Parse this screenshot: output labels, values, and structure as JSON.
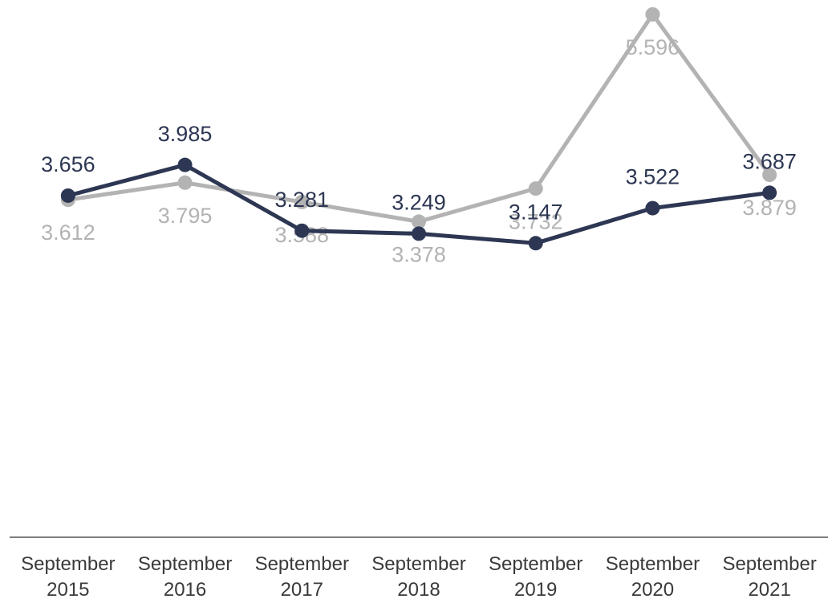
{
  "chart_data": {
    "type": "line",
    "categories": [
      "September 2015",
      "September 2016",
      "September 2017",
      "September 2018",
      "September 2019",
      "September 2020",
      "September 2021"
    ],
    "series": [
      {
        "color": "#b3b3b3",
        "values": [
          3.612,
          3.795,
          3.588,
          3.378,
          3.732,
          5.596,
          3.879
        ]
      },
      {
        "color": "#2d3753",
        "values": [
          3.656,
          3.985,
          3.281,
          3.249,
          3.147,
          3.522,
          3.687
        ]
      }
    ],
    "ylim": [
      0,
      5.75
    ]
  }
}
